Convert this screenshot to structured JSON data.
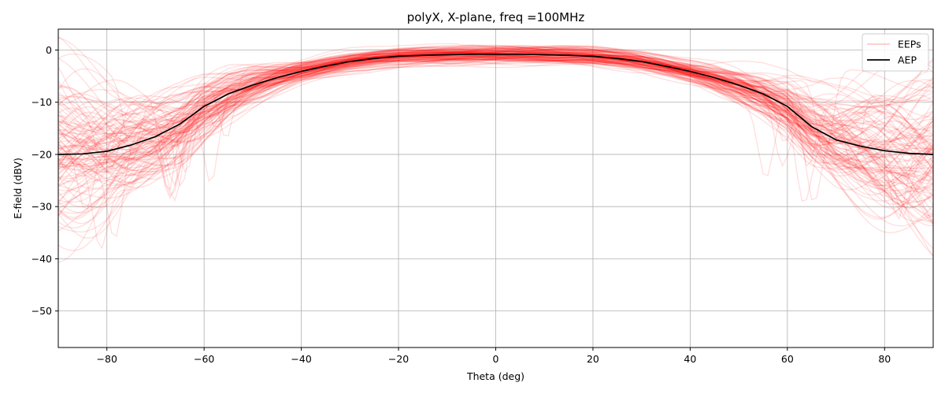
{
  "chart_data": {
    "type": "line",
    "title": "polyX, X-plane, freq =100MHz",
    "xlabel": "Theta (deg)",
    "ylabel": "E-field (dBV)",
    "xlim": [
      -90,
      90
    ],
    "ylim": [
      -57,
      4
    ],
    "xticks": [
      -80,
      -60,
      -40,
      -20,
      0,
      20,
      40,
      60,
      80
    ],
    "yticks": [
      0,
      -10,
      -20,
      -30,
      -40,
      -50
    ],
    "grid": true,
    "legend_position": "top-right",
    "colors": {
      "eep": "#ff0000",
      "aep": "#000000",
      "grid": "#b0b0b0"
    },
    "series": [
      {
        "name": "EEPs",
        "color": "#ff0000",
        "opacity": 0.12,
        "count_drawn": 120,
        "description_shape": "envelope around AEP; spread ~±2 dB near center, widening to ~±15 dB beyond |theta|>60"
      },
      {
        "name": "AEP",
        "color": "#000000",
        "x": [
          -90,
          -85,
          -80,
          -75,
          -70,
          -65,
          -60,
          -55,
          -50,
          -45,
          -40,
          -35,
          -30,
          -25,
          -20,
          -15,
          -10,
          -5,
          0,
          5,
          10,
          15,
          20,
          25,
          30,
          35,
          40,
          45,
          50,
          55,
          60,
          65,
          70,
          75,
          80,
          85,
          90
        ],
        "y": [
          -20.0,
          -19.9,
          -19.4,
          -18.2,
          -16.6,
          -14.2,
          -10.8,
          -8.4,
          -6.7,
          -5.3,
          -4.1,
          -3.1,
          -2.2,
          -1.6,
          -1.2,
          -1.0,
          -0.9,
          -0.8,
          -0.8,
          -0.8,
          -0.9,
          -1.0,
          -1.2,
          -1.6,
          -2.2,
          -3.1,
          -4.1,
          -5.3,
          -6.7,
          -8.4,
          -10.8,
          -14.7,
          -17.2,
          -18.4,
          -19.3,
          -19.8,
          -20.0
        ]
      }
    ]
  }
}
